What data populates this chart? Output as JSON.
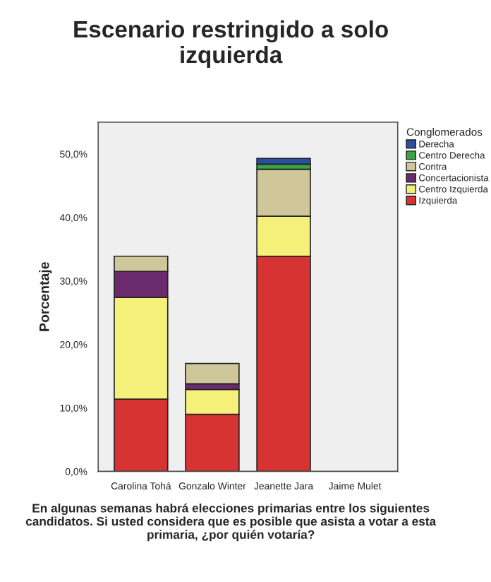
{
  "chart_data": {
    "type": "bar",
    "title": "Escenario restringido a solo izquierda",
    "xlabel": "En algunas semanas habrá elecciones primarias entre los siguientes candidatos. Si usted considera que es posible que asista a votar a esta primaria, ¿por quién votaría?",
    "ylabel": "Porcentaje",
    "legend_title": "Conglomerados",
    "categories": [
      "Carolina Tohá",
      "Gonzalo Winter",
      "Jeanette Jara",
      "Jaime Mulet"
    ],
    "stacked": true,
    "series": [
      {
        "name": "Izquierda",
        "color": "#d83333",
        "values": [
          11.4,
          9.0,
          33.9,
          null
        ]
      },
      {
        "name": "Centro Izquierda",
        "color": "#f5f07a",
        "values": [
          16.0,
          3.9,
          6.3,
          null
        ]
      },
      {
        "name": "Concertacionista",
        "color": "#6b2a6b",
        "values": [
          4.1,
          0.9,
          null,
          null
        ]
      },
      {
        "name": "Contra",
        "color": "#cfc79a",
        "values": [
          2.4,
          3.2,
          7.4,
          null
        ]
      },
      {
        "name": "Centro Derecha",
        "color": "#3aa345",
        "values": [
          null,
          null,
          0.8,
          null
        ]
      },
      {
        "name": "Derecha",
        "color": "#2b4ea0",
        "values": [
          null,
          null,
          0.9,
          null
        ]
      }
    ],
    "ylim": [
      0,
      55
    ],
    "yticks": [
      {
        "value": 0,
        "label": "0,0%"
      },
      {
        "value": 10,
        "label": "10,0%"
      },
      {
        "value": 20,
        "label": "20,0%"
      },
      {
        "value": 30,
        "label": "30,0%"
      },
      {
        "value": 40,
        "label": "40,0%"
      },
      {
        "value": 50,
        "label": "50,0%"
      }
    ],
    "grid": false,
    "legend": "right"
  }
}
